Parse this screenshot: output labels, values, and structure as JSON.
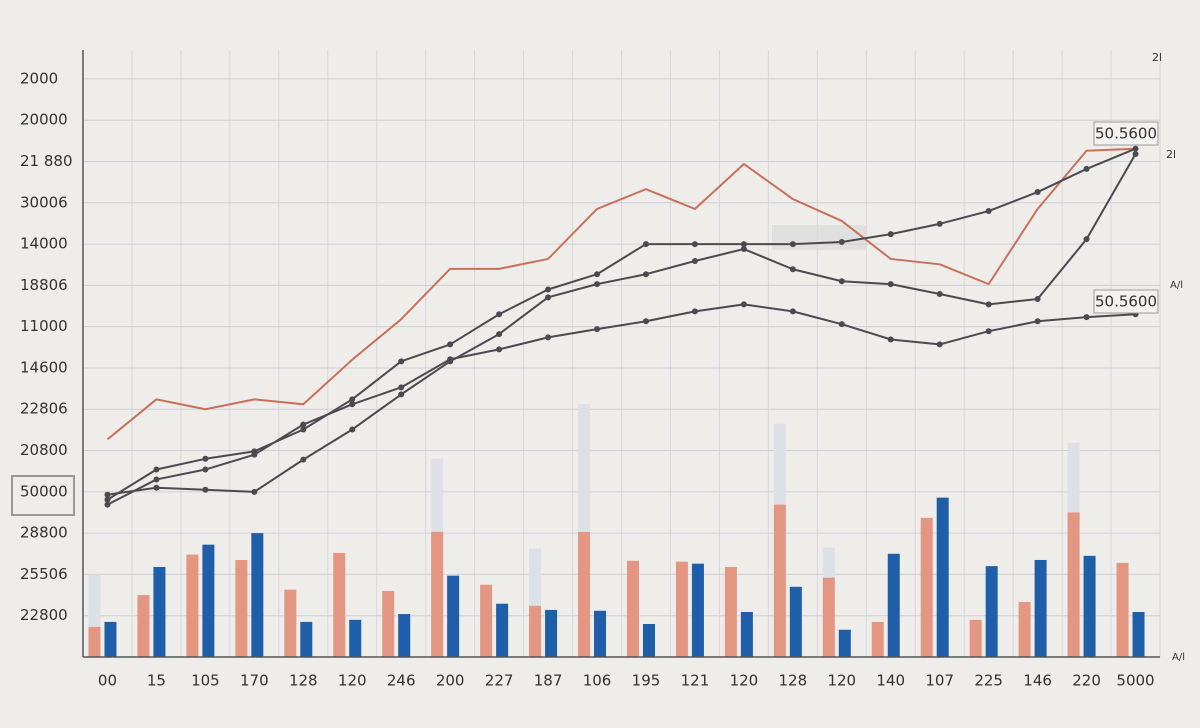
{
  "chart_data": {
    "type": "combo",
    "categories": [
      "00",
      "15",
      "105",
      "170",
      "128",
      "120",
      "246",
      "200",
      "227",
      "187",
      "106",
      "195",
      "121",
      "120",
      "128",
      "120",
      "140",
      "107",
      "225",
      "146",
      "220",
      "5000"
    ],
    "ylim": [
      0,
      14.7
    ],
    "yticks": [
      {
        "value": 14,
        "label": "2000"
      },
      {
        "value": 13,
        "label": "20000"
      },
      {
        "value": 12,
        "label": "21 880"
      },
      {
        "value": 11,
        "label": "30006"
      },
      {
        "value": 10,
        "label": "14000"
      },
      {
        "value": 9,
        "label": "18806"
      },
      {
        "value": 8,
        "label": "11000"
      },
      {
        "value": 7,
        "label": "14600"
      },
      {
        "value": 6,
        "label": "22806"
      },
      {
        "value": 5,
        "label": "20800"
      },
      {
        "value": 4,
        "label": "50000"
      },
      {
        "value": 3,
        "label": "28800"
      },
      {
        "value": 2,
        "label": "25506"
      },
      {
        "value": 1,
        "label": "22800"
      }
    ],
    "grid": true,
    "series": [
      {
        "type": "bar",
        "slot": "left",
        "color": "#dde0e6",
        "values": [
          2.0,
          null,
          null,
          null,
          1.4,
          null,
          null,
          4.8,
          null,
          2.63,
          6.13,
          null,
          null,
          null,
          5.65,
          2.65,
          null,
          null,
          null,
          null,
          5.19,
          2.0
        ]
      },
      {
        "type": "bar",
        "slot": "left",
        "color": "#e39682",
        "values": [
          0.73,
          1.5,
          2.48,
          2.35,
          1.63,
          2.52,
          1.6,
          3.03,
          1.75,
          1.24,
          3.03,
          2.33,
          2.31,
          2.18,
          3.69,
          1.92,
          0.85,
          3.37,
          0.9,
          1.33,
          3.5,
          2.28
        ]
      },
      {
        "type": "bar",
        "slot": "right",
        "color": "#1f5ea8",
        "values": [
          0.85,
          2.18,
          2.72,
          3.0,
          0.85,
          0.9,
          1.04,
          1.97,
          1.29,
          1.14,
          1.12,
          0.8,
          2.26,
          1.09,
          1.7,
          0.66,
          2.5,
          3.86,
          2.2,
          2.35,
          2.45,
          1.09
        ]
      },
      {
        "type": "line",
        "color": "#c8705a",
        "markers": false,
        "values": [
          5.27,
          6.24,
          6.0,
          6.24,
          6.12,
          7.2,
          8.18,
          9.4,
          9.4,
          9.64,
          10.85,
          11.33,
          10.85,
          11.94,
          11.09,
          10.56,
          9.64,
          9.51,
          9.03,
          10.85,
          12.26,
          12.31
        ]
      },
      {
        "type": "line",
        "color": "#4a4a4f",
        "markers": true,
        "values": [
          3.81,
          4.54,
          4.8,
          4.98,
          5.51,
          6.24,
          7.16,
          7.57,
          8.3,
          8.9,
          9.27,
          10.0,
          10.0,
          10.0,
          10.0,
          10.05,
          10.24,
          10.49,
          10.8,
          11.26,
          11.82,
          12.31
        ]
      },
      {
        "type": "line",
        "color": "#4a4a4f",
        "markers": true,
        "values": [
          3.93,
          4.1,
          4.05,
          4.0,
          4.78,
          5.51,
          6.36,
          7.16,
          7.82,
          8.71,
          9.03,
          9.27,
          9.59,
          9.88,
          9.39,
          9.1,
          9.03,
          8.79,
          8.54,
          8.67,
          10.12,
          12.18
        ]
      },
      {
        "type": "line",
        "color": "#4a4a4f",
        "markers": true,
        "values": [
          3.69,
          4.3,
          4.54,
          4.9,
          5.63,
          6.12,
          6.53,
          7.21,
          7.45,
          7.74,
          7.94,
          8.13,
          8.37,
          8.54,
          8.37,
          8.06,
          7.69,
          7.57,
          7.89,
          8.13,
          8.23,
          8.3
        ]
      }
    ],
    "annotations": [
      "50.5600",
      "50.5600"
    ],
    "side_labels": [
      "2l",
      "2l",
      "A/l",
      "A/l"
    ]
  }
}
